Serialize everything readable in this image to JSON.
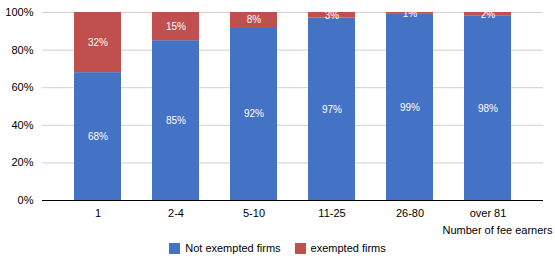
{
  "chart_data": {
    "type": "bar",
    "stacked": true,
    "categories": [
      "1",
      "2-4",
      "5-10",
      "11-25",
      "26-80",
      "over 81"
    ],
    "series": [
      {
        "name": "Not exempted firms",
        "color": "#4472c4",
        "values": [
          68,
          85,
          92,
          97,
          99,
          98
        ],
        "value_labels": [
          "68%",
          "85%",
          "92%",
          "97%",
          "99%",
          "98%"
        ]
      },
      {
        "name": "exempted firms",
        "color": "#c0504d",
        "values": [
          32,
          15,
          8,
          3,
          1,
          2
        ],
        "value_labels": [
          "32%",
          "15%",
          "8%",
          "3%",
          "1%",
          "2%"
        ]
      }
    ],
    "xlabel": "Number of fee earners",
    "ylim": [
      0,
      100
    ],
    "yticks": [
      {
        "value": 0,
        "label": "0%"
      },
      {
        "value": 20,
        "label": "20%"
      },
      {
        "value": 40,
        "label": "40%"
      },
      {
        "value": 60,
        "label": "60%"
      },
      {
        "value": 80,
        "label": "80%"
      },
      {
        "value": 100,
        "label": "100%"
      }
    ],
    "grid": true,
    "data_labels": true,
    "legend": "bottom"
  }
}
